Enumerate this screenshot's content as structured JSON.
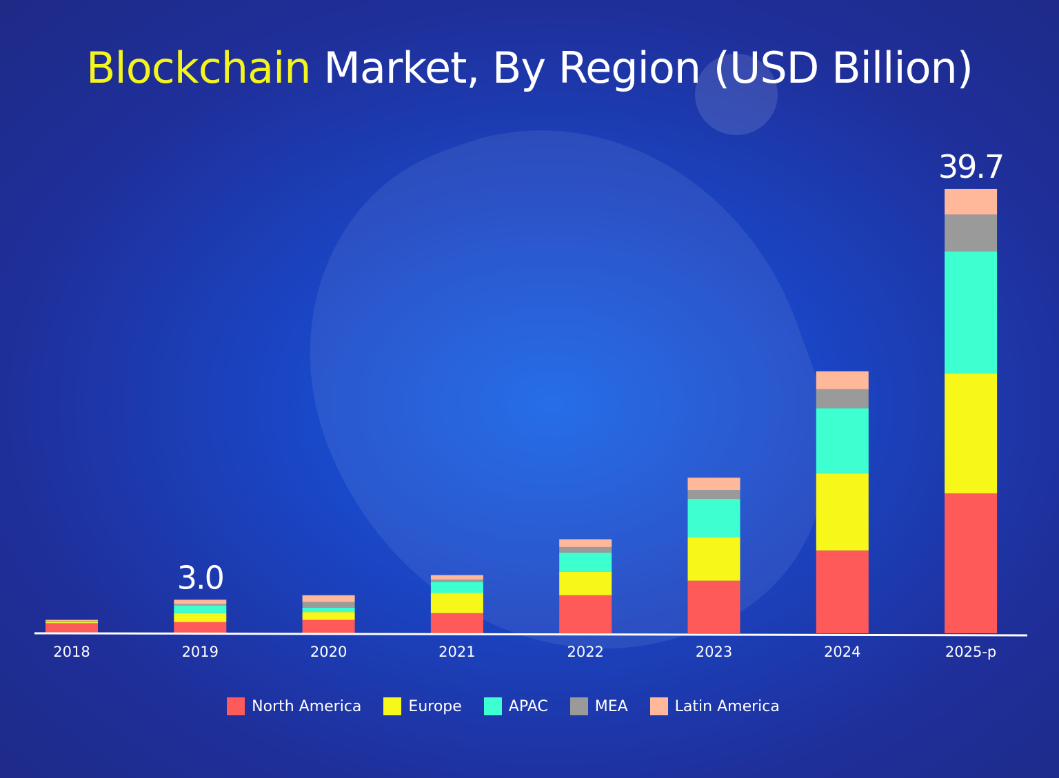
{
  "chart_data": {
    "type": "bar",
    "stacked": true,
    "title_highlight": "Blockchain",
    "title_rest": "Market, By Region (USD Billion)",
    "xlabel": "",
    "ylabel": "",
    "ylim": [
      0,
      40
    ],
    "grid": false,
    "legend_position": "bottom",
    "categories": [
      "2018",
      "2019",
      "2020",
      "2021",
      "2022",
      "2023",
      "2024",
      "2025-p"
    ],
    "series": [
      {
        "name": "North America",
        "color": "#ff5a5a",
        "values": [
          0.9,
          1.0,
          1.2,
          1.8,
          3.4,
          4.7,
          7.4,
          12.5
        ]
      },
      {
        "name": "Europe",
        "color": "#f7f71a",
        "values": [
          0.1,
          0.8,
          0.7,
          1.8,
          2.1,
          3.9,
          6.9,
          10.7
        ]
      },
      {
        "name": "APAC",
        "color": "#3dffd0",
        "values": [
          0.1,
          0.7,
          0.4,
          1.0,
          1.7,
          3.4,
          5.8,
          10.9
        ]
      },
      {
        "name": "MEA",
        "color": "#9a9a9a",
        "values": [
          0.0,
          0.1,
          0.5,
          0.2,
          0.5,
          0.8,
          1.7,
          3.3
        ]
      },
      {
        "name": "Latin America",
        "color": "#ffb899",
        "values": [
          0.1,
          0.4,
          0.6,
          0.4,
          0.7,
          1.1,
          1.6,
          2.3
        ]
      }
    ],
    "data_labels": [
      null,
      "3.0",
      null,
      null,
      null,
      null,
      null,
      "39.7"
    ]
  }
}
